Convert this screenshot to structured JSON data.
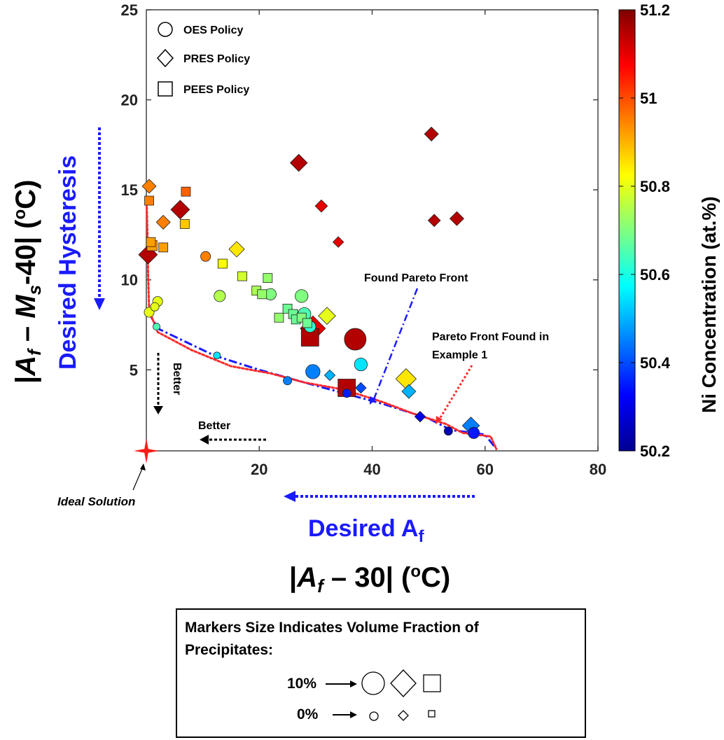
{
  "chart_data": {
    "type": "scatter",
    "title": "",
    "xlabel_parts": [
      "|",
      "A",
      "f",
      " – 30| (",
      "o",
      "C)"
    ],
    "ylabel_parts": [
      "|",
      "A",
      "f",
      " – ",
      "M",
      "s",
      "-40| (",
      "o",
      "C)"
    ],
    "xlim": [
      0,
      80
    ],
    "ylim": [
      0.5,
      25
    ],
    "xticks": [
      20,
      40,
      60,
      80
    ],
    "yticks": [
      5,
      10,
      15,
      20,
      25
    ],
    "grid": false,
    "legend": {
      "placement": "top-left",
      "entries": [
        {
          "shape": "circle",
          "label": "OES Policy"
        },
        {
          "shape": "diamond",
          "label": "PRES Policy"
        },
        {
          "shape": "square",
          "label": "PEES Policy"
        }
      ]
    },
    "colorbar": {
      "label": "Ni Concentration (at.%)",
      "min": 50.2,
      "max": 51.2,
      "ticks": [
        "50.2",
        "50.4",
        "50.6",
        "50.8",
        "51",
        "51.2"
      ]
    },
    "series": [
      {
        "name": "OES Policy",
        "marker": "circle",
        "points": [
          {
            "x": 10.5,
            "y": 11.3,
            "ni": 50.95,
            "vf": 2
          },
          {
            "x": 13,
            "y": 9.1,
            "ni": 50.75,
            "vf": 3
          },
          {
            "x": 0.5,
            "y": 8.2,
            "ni": 50.8,
            "vf": 2
          },
          {
            "x": 1.5,
            "y": 8.5,
            "ni": 50.8,
            "vf": 1
          },
          {
            "x": 2,
            "y": 8.8,
            "ni": 50.8,
            "vf": 2
          },
          {
            "x": 1.8,
            "y": 7.4,
            "ni": 50.65,
            "vf": 0
          },
          {
            "x": 12.5,
            "y": 5.8,
            "ni": 50.55,
            "vf": 0
          },
          {
            "x": 25,
            "y": 4.4,
            "ni": 50.45,
            "vf": 1
          },
          {
            "x": 22,
            "y": 9.2,
            "ni": 50.7,
            "vf": 3
          },
          {
            "x": 27.5,
            "y": 9.1,
            "ni": 50.7,
            "vf": 4
          },
          {
            "x": 28,
            "y": 8.1,
            "ni": 50.65,
            "vf": 4
          },
          {
            "x": 29,
            "y": 7.4,
            "ni": 50.62,
            "vf": 3
          },
          {
            "x": 29.5,
            "y": 4.9,
            "ni": 50.45,
            "vf": 5
          },
          {
            "x": 38,
            "y": 5.3,
            "ni": 50.55,
            "vf": 4
          },
          {
            "x": 37,
            "y": 6.7,
            "ni": 51.15,
            "vf": 10
          },
          {
            "x": 35.5,
            "y": 3.7,
            "ni": 50.35,
            "vf": 1
          },
          {
            "x": 53.5,
            "y": 1.6,
            "ni": 50.25,
            "vf": 1
          },
          {
            "x": 58,
            "y": 1.5,
            "ni": 50.35,
            "vf": 3
          }
        ]
      },
      {
        "name": "PRES Policy",
        "marker": "diamond",
        "points": [
          {
            "x": 0.5,
            "y": 15.2,
            "ni": 50.95,
            "vf": 3
          },
          {
            "x": 3,
            "y": 13.2,
            "ni": 50.95,
            "vf": 3
          },
          {
            "x": 6,
            "y": 13.9,
            "ni": 51.15,
            "vf": 6
          },
          {
            "x": 0.3,
            "y": 11.4,
            "ni": 51.15,
            "vf": 6
          },
          {
            "x": 16,
            "y": 11.7,
            "ni": 50.85,
            "vf": 4
          },
          {
            "x": 27,
            "y": 16.5,
            "ni": 51.15,
            "vf": 5
          },
          {
            "x": 31,
            "y": 14.1,
            "ni": 51.1,
            "vf": 2
          },
          {
            "x": 34,
            "y": 12.1,
            "ni": 51.1,
            "vf": 1
          },
          {
            "x": 50.5,
            "y": 18.1,
            "ni": 51.15,
            "vf": 3
          },
          {
            "x": 51,
            "y": 13.3,
            "ni": 51.15,
            "vf": 2
          },
          {
            "x": 55,
            "y": 13.4,
            "ni": 51.15,
            "vf": 3
          },
          {
            "x": 32,
            "y": 8.0,
            "ni": 50.8,
            "vf": 5
          },
          {
            "x": 29.5,
            "y": 7.3,
            "ni": 51.1,
            "vf": 10
          },
          {
            "x": 32.5,
            "y": 4.7,
            "ni": 50.5,
            "vf": 1
          },
          {
            "x": 38,
            "y": 4.0,
            "ni": 50.4,
            "vf": 1
          },
          {
            "x": 46,
            "y": 4.5,
            "ni": 50.85,
            "vf": 7
          },
          {
            "x": 46.5,
            "y": 3.8,
            "ni": 50.5,
            "vf": 3
          },
          {
            "x": 48.5,
            "y": 2.4,
            "ni": 50.3,
            "vf": 1
          },
          {
            "x": 57.5,
            "y": 1.9,
            "ni": 50.45,
            "vf": 5
          }
        ]
      },
      {
        "name": "PEES Policy",
        "marker": "square",
        "points": [
          {
            "x": 0.5,
            "y": 14.4,
            "ni": 50.95,
            "vf": 2
          },
          {
            "x": 0.8,
            "y": 12.1,
            "ni": 50.92,
            "vf": 2
          },
          {
            "x": 1,
            "y": 11.9,
            "ni": 50.92,
            "vf": 3
          },
          {
            "x": 3,
            "y": 11.8,
            "ni": 50.92,
            "vf": 2
          },
          {
            "x": 7,
            "y": 14.9,
            "ni": 50.98,
            "vf": 2
          },
          {
            "x": 6.8,
            "y": 13.1,
            "ni": 50.88,
            "vf": 2
          },
          {
            "x": 13.5,
            "y": 10.9,
            "ni": 50.82,
            "vf": 2
          },
          {
            "x": 17,
            "y": 10.2,
            "ni": 50.78,
            "vf": 2
          },
          {
            "x": 19.5,
            "y": 9.4,
            "ni": 50.74,
            "vf": 2
          },
          {
            "x": 20.5,
            "y": 9.2,
            "ni": 50.72,
            "vf": 2
          },
          {
            "x": 21.5,
            "y": 10.1,
            "ni": 50.72,
            "vf": 2
          },
          {
            "x": 23.5,
            "y": 7.9,
            "ni": 50.72,
            "vf": 2
          },
          {
            "x": 25,
            "y": 8.4,
            "ni": 50.68,
            "vf": 2
          },
          {
            "x": 26,
            "y": 8.1,
            "ni": 50.68,
            "vf": 2
          },
          {
            "x": 26.5,
            "y": 7.8,
            "ni": 50.68,
            "vf": 2
          },
          {
            "x": 27.5,
            "y": 7.9,
            "ni": 50.7,
            "vf": 2
          },
          {
            "x": 28.5,
            "y": 7.6,
            "ni": 50.68,
            "vf": 2
          },
          {
            "x": 29,
            "y": 6.8,
            "ni": 51.15,
            "vf": 10
          },
          {
            "x": 35.5,
            "y": 4.0,
            "ni": 51.15,
            "vf": 10
          }
        ]
      }
    ],
    "curves": [
      {
        "name": "Found Pareto Front",
        "style": "dash-dot",
        "color": "#1a1aff",
        "points": [
          [
            0.4,
            8.2
          ],
          [
            2,
            7.3
          ],
          [
            6,
            6.7
          ],
          [
            12,
            5.8
          ],
          [
            20,
            5.0
          ],
          [
            28,
            4.3
          ],
          [
            35,
            3.7
          ],
          [
            42,
            3.1
          ],
          [
            50,
            2.3
          ],
          [
            54,
            1.65
          ],
          [
            58,
            1.5
          ],
          [
            60,
            1.4
          ],
          [
            62,
            0.6
          ]
        ]
      },
      {
        "name": "Pareto Front Found in Example 1",
        "style": "dotted",
        "color": "#ff2a2a",
        "points": [
          [
            0.05,
            14.5
          ],
          [
            0.2,
            12.5
          ],
          [
            0.3,
            10.5
          ],
          [
            0.5,
            8.3
          ],
          [
            2,
            7.1
          ],
          [
            8,
            6.1
          ],
          [
            15,
            5.2
          ],
          [
            22,
            4.8
          ],
          [
            28,
            4.3
          ],
          [
            35,
            3.9
          ],
          [
            42,
            3.2
          ],
          [
            47,
            2.6
          ],
          [
            53,
            2.0
          ],
          [
            56,
            1.5
          ],
          [
            61,
            1.3
          ],
          [
            62,
            0.6
          ]
        ]
      }
    ],
    "ideal_solution": {
      "x": 0,
      "y": 0.5
    },
    "annotations": {
      "ideal": "Ideal Solution",
      "found_front": "Found Pareto Front",
      "example1_line1": "Pareto Front Found in",
      "example1_line2": "Example 1",
      "better": "Better",
      "desired_hysteresis": "Desired Hysteresis",
      "desired_af_main": "Desired A",
      "desired_af_sub": "f"
    },
    "size_note": {
      "line1": "Markers Size Indicates Volume Fraction of",
      "line2": "Precipitates:",
      "big_label": "10%",
      "small_label": "0%"
    }
  }
}
